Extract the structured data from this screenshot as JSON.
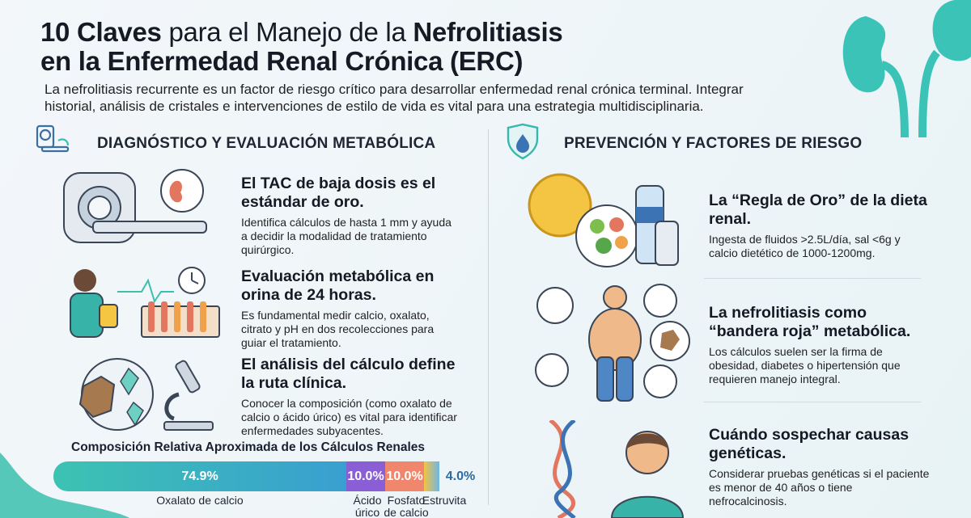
{
  "header": {
    "title_parts": [
      "10 Claves",
      " para el Manejo de la ",
      "Nefrolitiasis"
    ],
    "title_line2": "en la Enfermedad Renal Crónica (ERC)",
    "intro": "La nefrolitiasis recurrente es un factor de riesgo crítico para desarrollar enfermedad renal crónica terminal. Integrar historial, análisis de cristales e intervenciones de estilo de vida es vital para una estrategia multidisciplinaria."
  },
  "left_section": {
    "heading": "DIAGNÓSTICO Y EVALUACIÓN METABÓLICA",
    "icon": "ct-scanner-icon",
    "cards": [
      {
        "title": "El TAC de baja dosis es el estándar de oro.",
        "body": "Identifica cálculos de hasta 1 mm y ayuda a decidir la modalidad de tratamiento quirúrgico.",
        "icon": "ct-scanner-kidney-icon"
      },
      {
        "title": "Evaluación metabólica en orina de 24 horas.",
        "body": "Es fundamental medir calcio, oxalato, citrato y pH en dos recolecciones para guiar el tratamiento.",
        "icon": "urine-test-clock-icon"
      },
      {
        "title": "El análisis del cálculo define la ruta clínica.",
        "body": "Conocer la composición (como oxalato de calcio o ácido úrico) es vital para identificar enfermedades subyacentes.",
        "icon": "stone-microscope-icon"
      }
    ]
  },
  "right_section": {
    "heading": "PREVENCIÓN Y FACTORES DE RIESGO",
    "icon": "shield-drop-icon",
    "cards": [
      {
        "title": "La “Regla de Oro” de la dieta renal.",
        "body": "Ingesta de fluidos >2.5L/día, sal <6g y calcio dietético de 1000-1200mg.",
        "icon": "diet-plate-water-icon"
      },
      {
        "title": "La nefrolitiasis como “bandera roja” metabólica.",
        "body": "Los cálculos suelen ser la firma de obesidad, diabetes o hipertensión que requieren manejo integral.",
        "icon": "metabolic-body-icon"
      },
      {
        "title": "Cuándo sospechar causas genéticas.",
        "body": "Considerar pruebas genéticas si el paciente es menor de 40 años o tiene nefrocalcinosis.",
        "icon": "dna-person-icon"
      }
    ]
  },
  "composition": {
    "title": "Composición Relativa Aproximada de los Cálculos Renales",
    "segments": [
      {
        "label": "Oxalato de calcio",
        "value_text": "74.9%",
        "value": 74.9,
        "color": "#35bfb2"
      },
      {
        "label": "Ácido úrico",
        "value_text": "10.0%",
        "value": 10.0,
        "color": "#8a5fd6"
      },
      {
        "label": "Fosfato de calcio",
        "value_text": "10.0%",
        "value": 10.0,
        "color": "#f0876c"
      },
      {
        "label": "Estruvita",
        "value_text": "4.0%",
        "value": 4.0,
        "color": "#f2c443"
      }
    ]
  }
}
